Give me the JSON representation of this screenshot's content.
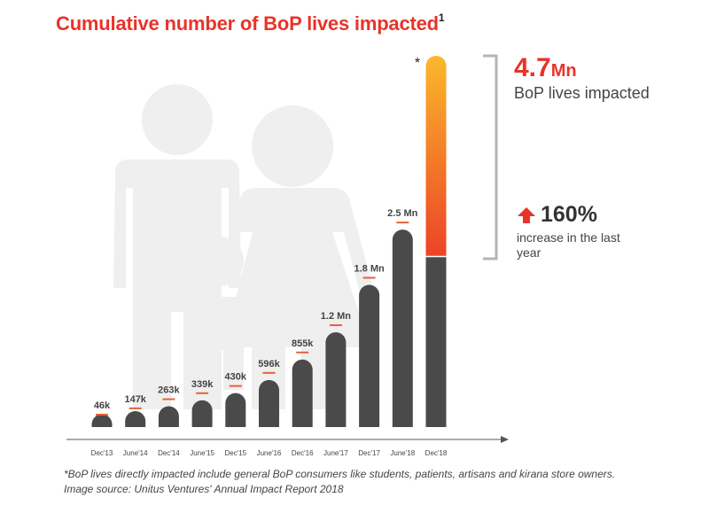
{
  "title": "Cumulative number of BoP lives impacted",
  "title_superscript": "1",
  "asterisk": "*",
  "highlight": {
    "value": "4.7",
    "unit": "Mn",
    "label": "BoP lives impacted"
  },
  "increase": {
    "value": "160%",
    "label": "increase in the last year",
    "icon": "arrow-up-icon"
  },
  "footnote": {
    "line1": "*BoP lives directly impacted include general BoP consumers like students, patients, artisans and kirana store owners.",
    "line2": "Image source: Unitus Ventures' Annual Impact Report 2018"
  },
  "colors": {
    "title": "#e8332a",
    "bar": "#4a4a4a",
    "accent_line": "#e8603a",
    "gradient_top": "#fbb82b",
    "gradient_bottom": "#ec4327",
    "bracket": "#b5b5b5",
    "silhouette": "#efefef"
  },
  "chart_data": {
    "type": "bar",
    "categories": [
      "Dec'13",
      "June'14",
      "Dec'14",
      "June'15",
      "Dec'15",
      "June'16",
      "Dec'16",
      "June'17",
      "Dec'17",
      "June'18",
      "Dec'18"
    ],
    "values": [
      46000,
      147000,
      263000,
      339000,
      430000,
      596000,
      855000,
      1200000,
      1800000,
      2500000,
      4700000
    ],
    "data_labels": [
      "46k",
      "147k",
      "263k",
      "339k",
      "430k",
      "596k",
      "855k",
      "1.2 Mn",
      "1.8 Mn",
      "2.5 Mn",
      ""
    ],
    "highlighted_increase_from": 1800000,
    "title": "Cumulative number of BoP lives impacted",
    "xlabel": "",
    "ylabel": "",
    "grid": false,
    "legend": "none"
  }
}
